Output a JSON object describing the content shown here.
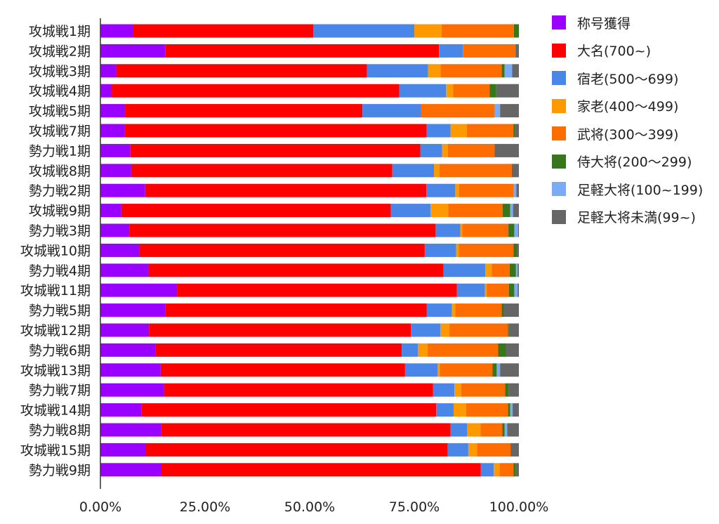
{
  "chart_data": {
    "type": "bar",
    "orientation": "horizontal",
    "stacked": "percent",
    "categories": [
      "攻城戦1期",
      "攻城戦2期",
      "攻城戦3期",
      "攻城戦4期",
      "攻城戦5期",
      "攻城戦7期",
      "勢力戦1期",
      "攻城戦8期",
      "勢力戦2期",
      "攻城戦9期",
      "勢力戦3期",
      "攻城戦10期",
      "勢力戦4期",
      "攻城戦11期",
      "勢力戦5期",
      "攻城戦12期",
      "勢力戦6期",
      "攻城戦13期",
      "勢力戦7期",
      "攻城戦14期",
      "勢力戦8期",
      "攻城戦15期",
      "勢力戦9期"
    ],
    "series": [
      {
        "name": "称号獲得",
        "color": "#9900ff",
        "values": [
          7.8,
          15.5,
          3.7,
          2.6,
          5.8,
          5.8,
          7.1,
          7.4,
          10.7,
          5.0,
          6.9,
          9.3,
          11.4,
          18.3,
          15.5,
          11.6,
          13.1,
          14.4,
          15.2,
          9.9,
          14.6,
          10.9,
          14.6
        ]
      },
      {
        "name": "大名(700~)",
        "color": "#ff0000",
        "values": [
          43.1,
          65.5,
          60.0,
          68.8,
          56.8,
          71.4,
          69.4,
          62.7,
          67.2,
          64.4,
          73.2,
          68.2,
          70.6,
          66.9,
          62.5,
          62.6,
          58.9,
          58.4,
          64.3,
          70.8,
          69.4,
          72.1,
          76.3
        ]
      },
      {
        "name": "宿老(500〜699)",
        "color": "#4a86e8",
        "values": [
          24.1,
          5.7,
          14.6,
          11.2,
          14.0,
          5.6,
          5.2,
          10.0,
          6.9,
          9.5,
          5.9,
          7.5,
          10.0,
          6.7,
          6.0,
          7.0,
          3.9,
          7.8,
          5.1,
          4.2,
          4.0,
          4.9,
          3.1
        ]
      },
      {
        "name": "家老(400〜499)",
        "color": "#ff9900",
        "values": [
          6.5,
          0,
          3.0,
          1.7,
          0,
          3.9,
          1.4,
          1.3,
          0.9,
          4.2,
          0.5,
          0.6,
          1.5,
          0.4,
          0.8,
          2.2,
          2.3,
          0.5,
          1.6,
          3.0,
          3.2,
          2.1,
          1.4
        ]
      },
      {
        "name": "武将(300〜399)",
        "color": "#ff6d01",
        "values": [
          17.3,
          12.6,
          14.6,
          8.7,
          17.6,
          11.0,
          11.2,
          17.4,
          13.1,
          13.0,
          11.0,
          13.1,
          4.3,
          5.3,
          11.1,
          14.0,
          16.8,
          12.6,
          10.5,
          10.1,
          5.2,
          8.0,
          3.3
        ]
      },
      {
        "name": "侍大将(200〜299)",
        "color": "#38761d",
        "values": [
          1.2,
          0,
          0.7,
          1.6,
          0,
          0.4,
          0,
          0,
          0,
          1.8,
          1.4,
          0.8,
          1.5,
          1.3,
          0.5,
          0.2,
          1.9,
          1.0,
          0.8,
          0.5,
          0.6,
          0,
          0.6
        ]
      },
      {
        "name": "足軽大将(100~199)",
        "color": "#7baaf7",
        "values": [
          0,
          0,
          1.8,
          0,
          1.3,
          0,
          0,
          0,
          0.6,
          0.7,
          0.9,
          0,
          0.4,
          0.8,
          0,
          0,
          0,
          0.8,
          0,
          0.6,
          0.6,
          0,
          0
        ]
      },
      {
        "name": "足軽大将未満(99~)",
        "color": "#666666",
        "values": [
          0,
          0.8,
          1.6,
          5.4,
          4.5,
          0.9,
          5.8,
          1.7,
          0.6,
          1.4,
          0.2,
          0.5,
          0.3,
          0.3,
          3.6,
          2.4,
          3.1,
          4.5,
          2.5,
          1.5,
          2.8,
          2.0,
          0.7
        ]
      }
    ],
    "xlim": [
      0,
      100
    ],
    "xticks": [
      "0.00%",
      "25.00%",
      "50.00%",
      "75.00%",
      "100.00%"
    ],
    "grid": false,
    "legend_position": "right"
  }
}
